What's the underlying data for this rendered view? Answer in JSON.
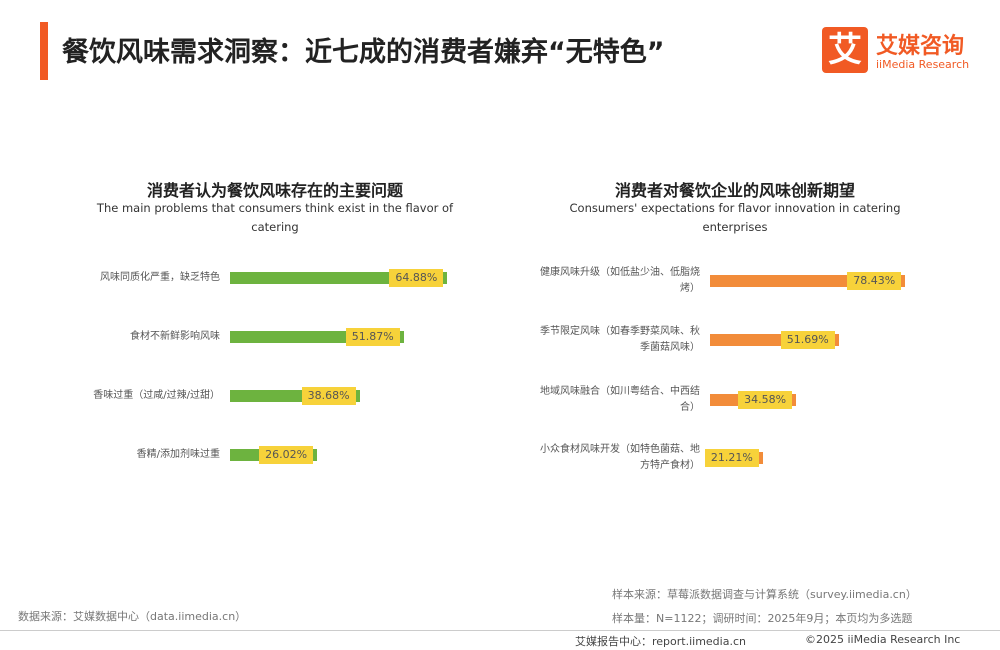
{
  "header": {
    "title": "餐饮风味需求洞察：近七成的消费者嫌弃“无特色”",
    "logo_mark": "艾",
    "logo_cn": "艾媒咨询",
    "logo_en": "iiMedia Research"
  },
  "chart_data": [
    {
      "type": "bar",
      "orientation": "horizontal",
      "title": "消费者认为餐饮风味存在的主要问题",
      "subtitle": "The main problems that consumers think exist in the flavor of catering",
      "categories": [
        "风味同质化严重，缺乏特色",
        "食材不新鲜影响风味",
        "香味过重（过咸/过辣/过甜）",
        "香精/添加剂味过重"
      ],
      "values": [
        64.88,
        51.87,
        38.68,
        26.02
      ],
      "value_labels": [
        "64.88%",
        "51.87%",
        "38.68%",
        "26.02%"
      ],
      "color": "#6db33f",
      "label_color": "#f7d23a",
      "xlim": [
        0,
        100
      ]
    },
    {
      "type": "bar",
      "orientation": "horizontal",
      "title": "消费者对餐饮企业的风味创新期望",
      "subtitle": "Consumers' expectations for flavor innovation in catering enterprises",
      "categories": [
        "健康风味升级（如低盐少油、低脂烧烤）",
        "季节限定风味（如春季野菜风味、秋季菌菇风味）",
        "地域风味融合（如川粤结合、中西结合）",
        "小众食材风味开发（如特色菌菇、地方特产食材）"
      ],
      "values": [
        78.43,
        51.69,
        34.58,
        21.21
      ],
      "value_labels": [
        "78.43%",
        "51.69%",
        "34.58%",
        "21.21%"
      ],
      "color": "#f28c3a",
      "label_color": "#f7d23a",
      "xlim": [
        0,
        100
      ]
    }
  ],
  "footer": {
    "source": "数据来源：艾媒数据中心（data.iimedia.cn）",
    "sample_source": "样本来源：草莓派数据调查与计算系统（survey.iimedia.cn）",
    "sample": "样本量：N=1122；调研时间：2025年9月；本页均为多选题",
    "report": "艾媒报告中心：report.iimedia.cn",
    "copyright": "©2025 iiMedia Research Inc"
  }
}
